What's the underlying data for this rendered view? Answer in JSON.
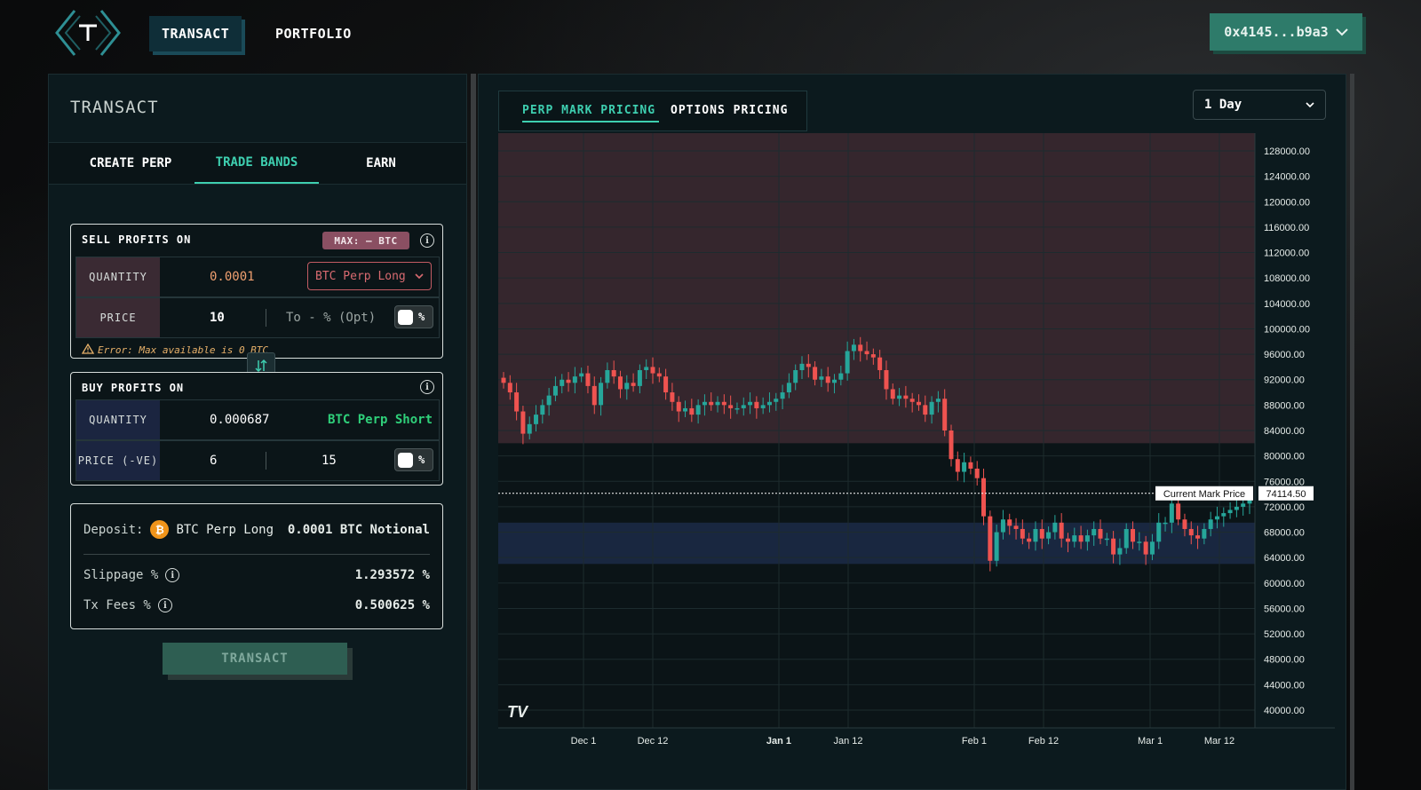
{
  "nav": {
    "transact": "TRANSACT",
    "portfolio": "PORTFOLIO",
    "wallet": "0x4145...b9a3"
  },
  "panel": {
    "title": "TRANSACT",
    "tabs": [
      "CREATE PERP",
      "TRADE BANDS",
      "EARN"
    ],
    "active_tab": "TRADE BANDS"
  },
  "sell": {
    "heading": "SELL PROFITS ON",
    "max_badge": "MAX: — BTC",
    "quantity_label": "QUANTITY",
    "quantity_value": "0.0001",
    "instrument": "BTC Perp Long",
    "price_label": "PRICE",
    "price_value": "10",
    "to_placeholder": "To - % (Opt)",
    "percent": "%",
    "error": "Error: Max available is 0 BTC"
  },
  "buy": {
    "heading": "BUY PROFITS ON",
    "quantity_label": "QUANTITY",
    "quantity_value": "0.000687",
    "instrument": "BTC Perp Short",
    "price_label": "PRICE (-VE)",
    "price_from": "6",
    "price_to": "15",
    "percent": "%"
  },
  "summary": {
    "deposit_label": "Deposit:",
    "deposit_asset": "BTC Perp Long",
    "deposit_amount": "0.0001 BTC Notional",
    "slippage_label": "Slippage %",
    "slippage_value": "1.293572 %",
    "fees_label": "Tx Fees %",
    "fees_value": "0.500625 %",
    "coin_symbol": "₿"
  },
  "transact_button": "TRANSACT",
  "chart_panel": {
    "tabs": [
      "PERP MARK PRICING",
      "OPTIONS PRICING"
    ],
    "active_tab": "PERP MARK PRICING",
    "range": "1 Day",
    "watermark": "TV"
  },
  "colors": {
    "accent": "#3ecfb0",
    "up_candle": "#26a69a",
    "down_candle": "#ef5350",
    "sell_band": "#5a3540",
    "buy_band": "#1c2a48"
  },
  "chart_data": {
    "type": "candlestick",
    "y_ticks": [
      "128000.00",
      "124000.00",
      "120000.00",
      "116000.00",
      "112000.00",
      "108000.00",
      "104000.00",
      "100000.00",
      "96000.00",
      "92000.00",
      "88000.00",
      "84000.00",
      "80000.00",
      "76000.00",
      "72000.00",
      "68000.00",
      "64000.00",
      "60000.00",
      "56000.00",
      "52000.00",
      "48000.00",
      "44000.00",
      "40000.00"
    ],
    "ylim": [
      40000,
      128000
    ],
    "x_ticks": [
      "Dec 1",
      "Dec 12",
      "Jan 1",
      "Jan 12",
      "Feb 1",
      "Feb 12",
      "Mar 1",
      "Mar 12"
    ],
    "bold_x_tick": "Jan 1",
    "current_mark_label": "Current Mark Price",
    "current_mark_price": "74114.50",
    "current_mark_value": 74114.5,
    "sell_band": [
      82000,
      130000
    ],
    "buy_band": [
      63000,
      69500
    ],
    "series_close": [
      91500,
      90000,
      87000,
      83500,
      85000,
      86500,
      88000,
      89500,
      91000,
      92000,
      91500,
      92500,
      93000,
      91000,
      88000,
      91500,
      93500,
      92500,
      90500,
      91500,
      91000,
      93500,
      94000,
      93000,
      92500,
      90000,
      88500,
      87000,
      87500,
      86500,
      88000,
      88500,
      88000,
      88500,
      88000,
      87500,
      87500,
      88000,
      88500,
      87500,
      88000,
      88500,
      89000,
      90000,
      91500,
      93500,
      94500,
      94000,
      92000,
      92500,
      91500,
      92000,
      93000,
      96500,
      97500,
      96500,
      96000,
      95500,
      93500,
      90500,
      89000,
      89500,
      89000,
      88500,
      88000,
      86500,
      88500,
      89000,
      84000,
      79500,
      77500,
      79000,
      78000,
      76500,
      70500,
      63500,
      68000,
      70000,
      69000,
      68500,
      67000,
      66500,
      68500,
      67000,
      68000,
      69500,
      67000,
      66500,
      67500,
      66500,
      67500,
      68500,
      67000,
      67000,
      64500,
      65500,
      68500,
      66500,
      66500,
      64500,
      66500,
      69500,
      69500,
      72500,
      70000,
      68500,
      67500,
      67000,
      68500,
      70000,
      70500,
      71000,
      71500,
      72000,
      72500,
      74000
    ]
  }
}
